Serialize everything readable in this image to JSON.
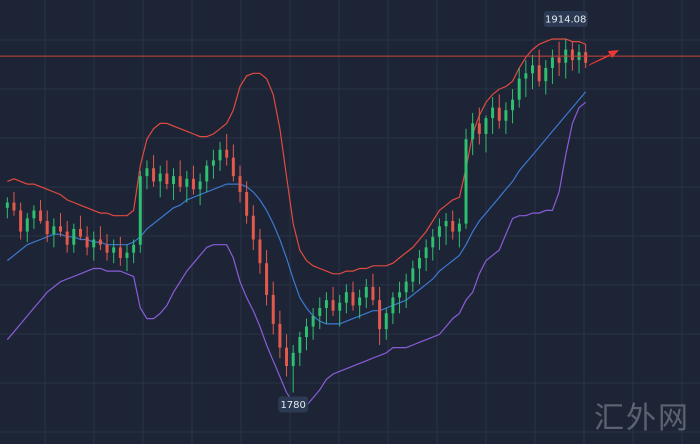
{
  "chart_data": {
    "type": "candlestick",
    "overlays": [
      "bollinger-upper",
      "bollinger-middle",
      "bollinger-lower"
    ],
    "price_range": [
      1765,
      1925
    ],
    "grid": true,
    "annotations": {
      "high_label": "1914.08",
      "low_label": "1780",
      "resistance_level": 1907.5,
      "trend_arrow": "up"
    },
    "candles": [
      [
        1850,
        1854,
        1846,
        1852
      ],
      [
        1852,
        1856,
        1847,
        1849
      ],
      [
        1849,
        1852,
        1838,
        1841
      ],
      [
        1841,
        1848,
        1837,
        1846
      ],
      [
        1846,
        1851,
        1842,
        1849
      ],
      [
        1849,
        1853,
        1844,
        1845
      ],
      [
        1845,
        1849,
        1837,
        1840
      ],
      [
        1840,
        1846,
        1835,
        1843
      ],
      [
        1843,
        1848,
        1839,
        1841
      ],
      [
        1841,
        1845,
        1833,
        1836
      ],
      [
        1836,
        1844,
        1833,
        1842
      ],
      [
        1842,
        1847,
        1838,
        1839
      ],
      [
        1839,
        1843,
        1832,
        1835
      ],
      [
        1835,
        1841,
        1830,
        1838
      ],
      [
        1838,
        1843,
        1834,
        1836
      ],
      [
        1836,
        1840,
        1830,
        1833
      ],
      [
        1833,
        1838,
        1829,
        1835
      ],
      [
        1835,
        1839,
        1828,
        1831
      ],
      [
        1831,
        1836,
        1826,
        1833
      ],
      [
        1833,
        1838,
        1829,
        1836
      ],
      [
        1836,
        1864,
        1833,
        1862
      ],
      [
        1862,
        1868,
        1857,
        1865
      ],
      [
        1865,
        1870,
        1858,
        1860
      ],
      [
        1860,
        1866,
        1854,
        1863
      ],
      [
        1863,
        1868,
        1857,
        1859
      ],
      [
        1859,
        1865,
        1853,
        1862
      ],
      [
        1862,
        1868,
        1856,
        1858
      ],
      [
        1858,
        1864,
        1852,
        1861
      ],
      [
        1861,
        1866,
        1855,
        1857
      ],
      [
        1857,
        1863,
        1851,
        1860
      ],
      [
        1860,
        1868,
        1856,
        1866
      ],
      [
        1866,
        1872,
        1861,
        1868
      ],
      [
        1868,
        1875,
        1864,
        1872
      ],
      [
        1872,
        1878,
        1866,
        1869
      ],
      [
        1869,
        1874,
        1860,
        1862
      ],
      [
        1862,
        1866,
        1852,
        1856
      ],
      [
        1856,
        1860,
        1844,
        1847
      ],
      [
        1847,
        1851,
        1834,
        1838
      ],
      [
        1838,
        1842,
        1825,
        1829
      ],
      [
        1829,
        1834,
        1813,
        1817
      ],
      [
        1817,
        1822,
        1802,
        1806
      ],
      [
        1806,
        1811,
        1793,
        1797
      ],
      [
        1797,
        1802,
        1786,
        1790
      ],
      [
        1790,
        1798,
        1780,
        1795
      ],
      [
        1795,
        1803,
        1790,
        1801
      ],
      [
        1801,
        1808,
        1796,
        1805
      ],
      [
        1805,
        1812,
        1800,
        1809
      ],
      [
        1809,
        1816,
        1804,
        1812
      ],
      [
        1812,
        1818,
        1806,
        1815
      ],
      [
        1815,
        1820,
        1809,
        1811
      ],
      [
        1811,
        1817,
        1805,
        1814
      ],
      [
        1814,
        1821,
        1810,
        1818
      ],
      [
        1818,
        1822,
        1811,
        1813
      ],
      [
        1813,
        1819,
        1808,
        1816
      ],
      [
        1816,
        1823,
        1812,
        1820
      ],
      [
        1820,
        1825,
        1813,
        1815
      ],
      [
        1815,
        1820,
        1798,
        1804
      ],
      [
        1804,
        1812,
        1800,
        1810
      ],
      [
        1810,
        1818,
        1806,
        1816
      ],
      [
        1816,
        1822,
        1810,
        1818
      ],
      [
        1818,
        1825,
        1812,
        1822
      ],
      [
        1822,
        1830,
        1818,
        1827
      ],
      [
        1827,
        1834,
        1821,
        1831
      ],
      [
        1831,
        1838,
        1826,
        1835
      ],
      [
        1835,
        1842,
        1830,
        1839
      ],
      [
        1839,
        1846,
        1834,
        1843
      ],
      [
        1843,
        1848,
        1836,
        1845
      ],
      [
        1845,
        1849,
        1838,
        1841
      ],
      [
        1841,
        1846,
        1835,
        1844
      ],
      [
        1844,
        1880,
        1842,
        1876
      ],
      [
        1876,
        1886,
        1870,
        1882
      ],
      [
        1882,
        1888,
        1874,
        1878
      ],
      [
        1878,
        1885,
        1871,
        1884
      ],
      [
        1884,
        1892,
        1878,
        1888
      ],
      [
        1888,
        1893,
        1880,
        1883
      ],
      [
        1883,
        1890,
        1878,
        1887
      ],
      [
        1887,
        1895,
        1882,
        1891
      ],
      [
        1891,
        1903,
        1888,
        1899
      ],
      [
        1899,
        1906,
        1892,
        1901
      ],
      [
        1901,
        1908,
        1895,
        1904
      ],
      [
        1904,
        1910,
        1896,
        1898
      ],
      [
        1898,
        1906,
        1893,
        1903
      ],
      [
        1903,
        1910,
        1897,
        1907
      ],
      [
        1907,
        1913,
        1900,
        1905
      ],
      [
        1905,
        1914,
        1899,
        1910
      ],
      [
        1910,
        1913,
        1902,
        1906
      ],
      [
        1906,
        1912,
        1901,
        1909
      ],
      [
        1909,
        1912,
        1903,
        1905
      ]
    ],
    "bollinger": {
      "upper": [
        1860,
        1861,
        1860,
        1859,
        1859,
        1858,
        1857,
        1856,
        1855,
        1853,
        1852,
        1851,
        1850,
        1849,
        1848,
        1848,
        1847,
        1847,
        1847,
        1849,
        1866,
        1876,
        1880,
        1882,
        1882,
        1881,
        1880,
        1879,
        1878,
        1877,
        1877,
        1878,
        1880,
        1882,
        1887,
        1896,
        1900,
        1901,
        1901,
        1899,
        1893,
        1880,
        1862,
        1844,
        1834,
        1830,
        1828,
        1827,
        1826,
        1825,
        1825,
        1826,
        1826,
        1827,
        1827,
        1828,
        1828,
        1828,
        1829,
        1831,
        1833,
        1835,
        1838,
        1841,
        1845,
        1849,
        1851,
        1853,
        1854,
        1865,
        1878,
        1885,
        1890,
        1893,
        1895,
        1896,
        1898,
        1903,
        1907,
        1910,
        1912,
        1913,
        1914,
        1914,
        1914,
        1913,
        1913,
        1912
      ],
      "middle": [
        1830,
        1832,
        1834,
        1836,
        1837,
        1838,
        1839,
        1840,
        1840,
        1839,
        1839,
        1838,
        1838,
        1837,
        1837,
        1836,
        1836,
        1836,
        1836,
        1837,
        1839,
        1842,
        1844,
        1846,
        1848,
        1850,
        1851,
        1853,
        1854,
        1855,
        1856,
        1857,
        1858,
        1859,
        1859,
        1859,
        1858,
        1856,
        1853,
        1849,
        1844,
        1838,
        1831,
        1823,
        1816,
        1812,
        1809,
        1807,
        1806,
        1806,
        1806,
        1807,
        1808,
        1809,
        1810,
        1811,
        1811,
        1812,
        1813,
        1814,
        1815,
        1817,
        1819,
        1821,
        1823,
        1826,
        1828,
        1830,
        1832,
        1836,
        1841,
        1845,
        1848,
        1851,
        1854,
        1857,
        1860,
        1864,
        1867,
        1870,
        1873,
        1876,
        1879,
        1882,
        1885,
        1888,
        1891,
        1894
      ],
      "lower": [
        1800,
        1803,
        1806,
        1809,
        1812,
        1815,
        1818,
        1820,
        1822,
        1823,
        1824,
        1825,
        1826,
        1827,
        1827,
        1826,
        1826,
        1826,
        1825,
        1824,
        1812,
        1808,
        1808,
        1810,
        1813,
        1818,
        1822,
        1826,
        1829,
        1832,
        1835,
        1836,
        1836,
        1836,
        1831,
        1822,
        1816,
        1811,
        1805,
        1798,
        1792,
        1786,
        1780,
        1776,
        1774,
        1775,
        1778,
        1781,
        1785,
        1787,
        1788,
        1789,
        1790,
        1791,
        1792,
        1793,
        1794,
        1795,
        1797,
        1797,
        1797,
        1798,
        1799,
        1800,
        1801,
        1802,
        1805,
        1808,
        1810,
        1815,
        1818,
        1825,
        1830,
        1832,
        1834,
        1840,
        1846,
        1847,
        1847,
        1848,
        1848,
        1849,
        1849,
        1856,
        1870,
        1882,
        1888,
        1890
      ]
    }
  },
  "watermark": {
    "text": "汇外网"
  },
  "colors": {
    "background": "#1c2436",
    "grid": "#2a3347",
    "candle_up": "#2fbf71",
    "candle_down": "#e35a4c",
    "band_upper": "#e04b3f",
    "band_middle": "#3d78d0",
    "band_lower": "#8a5cd8",
    "resistance_line": "#c9443a",
    "arrow": "#ea3a33",
    "label_bg": "#2b3952"
  }
}
